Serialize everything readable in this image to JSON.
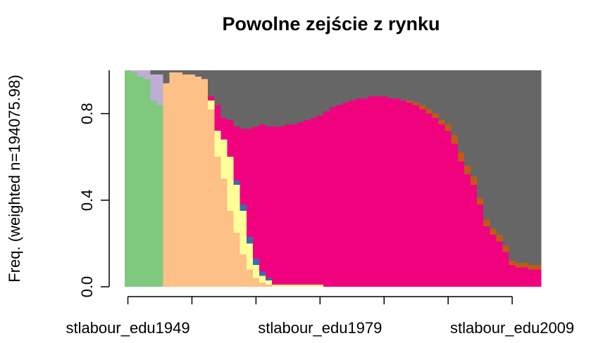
{
  "chart_data": {
    "type": "bar",
    "stacked": true,
    "title": "Powolne zejście z rynku",
    "ylabel": "Freq. (weighted n=194075.98)",
    "categories": [
      "stlabour_edu1949",
      null,
      null,
      null,
      null,
      null,
      null,
      null,
      null,
      null,
      null,
      null,
      null,
      null,
      null,
      null,
      null,
      null,
      null,
      null,
      null,
      null,
      null,
      null,
      null,
      null,
      null,
      null,
      null,
      null,
      "stlabour_edu1979",
      null,
      null,
      null,
      null,
      null,
      null,
      null,
      null,
      null,
      null,
      null,
      null,
      null,
      null,
      null,
      null,
      null,
      null,
      null,
      null,
      null,
      null,
      null,
      null,
      null,
      null,
      null,
      null,
      null,
      "stlabour_edu2009",
      null,
      null,
      null,
      null
    ],
    "ylim": [
      0,
      1
    ],
    "yticks": [
      {
        "value": 0,
        "label": "0.0"
      },
      0.4,
      0.8
    ],
    "series": [
      {
        "color": "#7fc97f",
        "values": [
          1,
          0.99,
          0.97,
          0.96,
          0.86,
          0.84,
          0,
          0,
          0,
          0,
          0,
          0,
          0,
          0,
          0,
          0,
          0,
          0,
          0,
          0,
          0,
          0,
          0,
          0,
          0,
          0,
          0,
          0,
          0,
          0,
          0,
          0,
          0,
          0,
          0,
          0,
          0,
          0,
          0,
          0,
          0,
          0,
          0,
          0,
          0,
          0,
          0,
          0,
          0,
          0,
          0,
          0,
          0,
          0,
          0,
          0,
          0,
          0,
          0,
          0,
          0,
          0,
          0,
          0,
          0
        ]
      },
      {
        "color": "#beaed4",
        "values": [
          0,
          0.01,
          0.03,
          0.04,
          0.12,
          0.14,
          0,
          0,
          0,
          0,
          0,
          0,
          0,
          0,
          0,
          0,
          0,
          0,
          0,
          0,
          0,
          0,
          0,
          0,
          0,
          0,
          0,
          0,
          0,
          0,
          0,
          0,
          0,
          0,
          0,
          0,
          0,
          0,
          0,
          0,
          0,
          0,
          0,
          0,
          0,
          0,
          0,
          0,
          0,
          0,
          0,
          0,
          0,
          0,
          0,
          0,
          0,
          0,
          0,
          0,
          0,
          0,
          0,
          0,
          0
        ]
      },
      {
        "color": "#fdc086",
        "values": [
          0,
          0,
          0,
          0,
          0,
          0,
          0.94,
          0.99,
          0.99,
          0.98,
          0.98,
          0.97,
          0.96,
          0.82,
          0.6,
          0.5,
          0.35,
          0.25,
          0.15,
          0.08,
          0.04,
          0.02,
          0.01,
          0,
          0,
          0,
          0,
          0,
          0,
          0,
          0,
          0,
          0,
          0,
          0,
          0,
          0,
          0,
          0,
          0,
          0,
          0,
          0,
          0,
          0,
          0,
          0,
          0,
          0,
          0,
          0,
          0,
          0,
          0,
          0,
          0,
          0,
          0,
          0,
          0,
          0,
          0,
          0,
          0,
          0
        ]
      },
      {
        "color": "#ffff99",
        "values": [
          0,
          0,
          0,
          0,
          0,
          0,
          0,
          0,
          0,
          0,
          0,
          0,
          0,
          0.04,
          0.12,
          0.18,
          0.25,
          0.22,
          0.2,
          0.12,
          0.06,
          0.03,
          0.02,
          0.01,
          0.01,
          0.01,
          0.01,
          0.01,
          0.01,
          0.01,
          0.01,
          0,
          0,
          0,
          0,
          0,
          0,
          0,
          0,
          0,
          0,
          0,
          0,
          0,
          0,
          0,
          0,
          0,
          0,
          0,
          0,
          0,
          0,
          0,
          0,
          0,
          0,
          0,
          0,
          0,
          0,
          0,
          0,
          0,
          0
        ]
      },
      {
        "color": "#386cb0",
        "values": [
          0,
          0,
          0,
          0,
          0,
          0,
          0,
          0,
          0,
          0,
          0,
          0,
          0,
          0,
          0,
          0,
          0,
          0.02,
          0.03,
          0.03,
          0.03,
          0.02,
          0.01,
          0,
          0,
          0,
          0,
          0,
          0,
          0,
          0,
          0,
          0,
          0,
          0,
          0,
          0,
          0,
          0,
          0,
          0,
          0,
          0,
          0,
          0,
          0,
          0,
          0,
          0,
          0,
          0,
          0,
          0,
          0,
          0,
          0,
          0,
          0,
          0,
          0,
          0,
          0,
          0,
          0,
          0
        ]
      },
      {
        "color": "#f0027f",
        "values": [
          0,
          0,
          0,
          0,
          0,
          0,
          0,
          0,
          0,
          0,
          0,
          0,
          0,
          0.02,
          0.12,
          0.1,
          0.17,
          0.25,
          0.35,
          0.5,
          0.61,
          0.68,
          0.7,
          0.73,
          0.73,
          0.74,
          0.74,
          0.75,
          0.76,
          0.77,
          0.78,
          0.81,
          0.83,
          0.84,
          0.85,
          0.86,
          0.87,
          0.87,
          0.88,
          0.88,
          0.88,
          0.87,
          0.87,
          0.86,
          0.85,
          0.84,
          0.82,
          0.8,
          0.78,
          0.75,
          0.72,
          0.66,
          0.58,
          0.52,
          0.47,
          0.38,
          0.28,
          0.24,
          0.21,
          0.16,
          0.1,
          0.09,
          0.09,
          0.08,
          0.08
        ]
      },
      {
        "color": "#bf5b17",
        "values": [
          0,
          0,
          0,
          0,
          0,
          0,
          0,
          0,
          0,
          0,
          0,
          0,
          0,
          0,
          0,
          0,
          0,
          0,
          0,
          0,
          0,
          0,
          0,
          0,
          0,
          0,
          0,
          0,
          0,
          0,
          0,
          0,
          0,
          0,
          0,
          0,
          0,
          0,
          0,
          0,
          0,
          0,
          0,
          0,
          0.01,
          0.01,
          0.02,
          0.02,
          0.02,
          0.02,
          0.03,
          0.04,
          0.04,
          0.04,
          0.04,
          0.03,
          0.03,
          0.03,
          0.03,
          0.03,
          0.02,
          0.02,
          0.02,
          0.02,
          0.02
        ]
      },
      {
        "color": "#666666",
        "values": [
          0,
          0,
          0,
          0,
          0.02,
          0.02,
          0.06,
          0.01,
          0.01,
          0.02,
          0.02,
          0.03,
          0.04,
          0.12,
          0.16,
          0.22,
          0.23,
          0.26,
          0.27,
          0.27,
          0.26,
          0.25,
          0.26,
          0.26,
          0.26,
          0.25,
          0.25,
          0.24,
          0.23,
          0.22,
          0.21,
          0.19,
          0.17,
          0.16,
          0.15,
          0.14,
          0.13,
          0.13,
          0.12,
          0.12,
          0.12,
          0.13,
          0.13,
          0.14,
          0.14,
          0.15,
          0.16,
          0.18,
          0.2,
          0.23,
          0.25,
          0.3,
          0.38,
          0.44,
          0.49,
          0.59,
          0.69,
          0.73,
          0.76,
          0.81,
          0.88,
          0.89,
          0.89,
          0.9,
          0.9
        ]
      }
    ]
  }
}
